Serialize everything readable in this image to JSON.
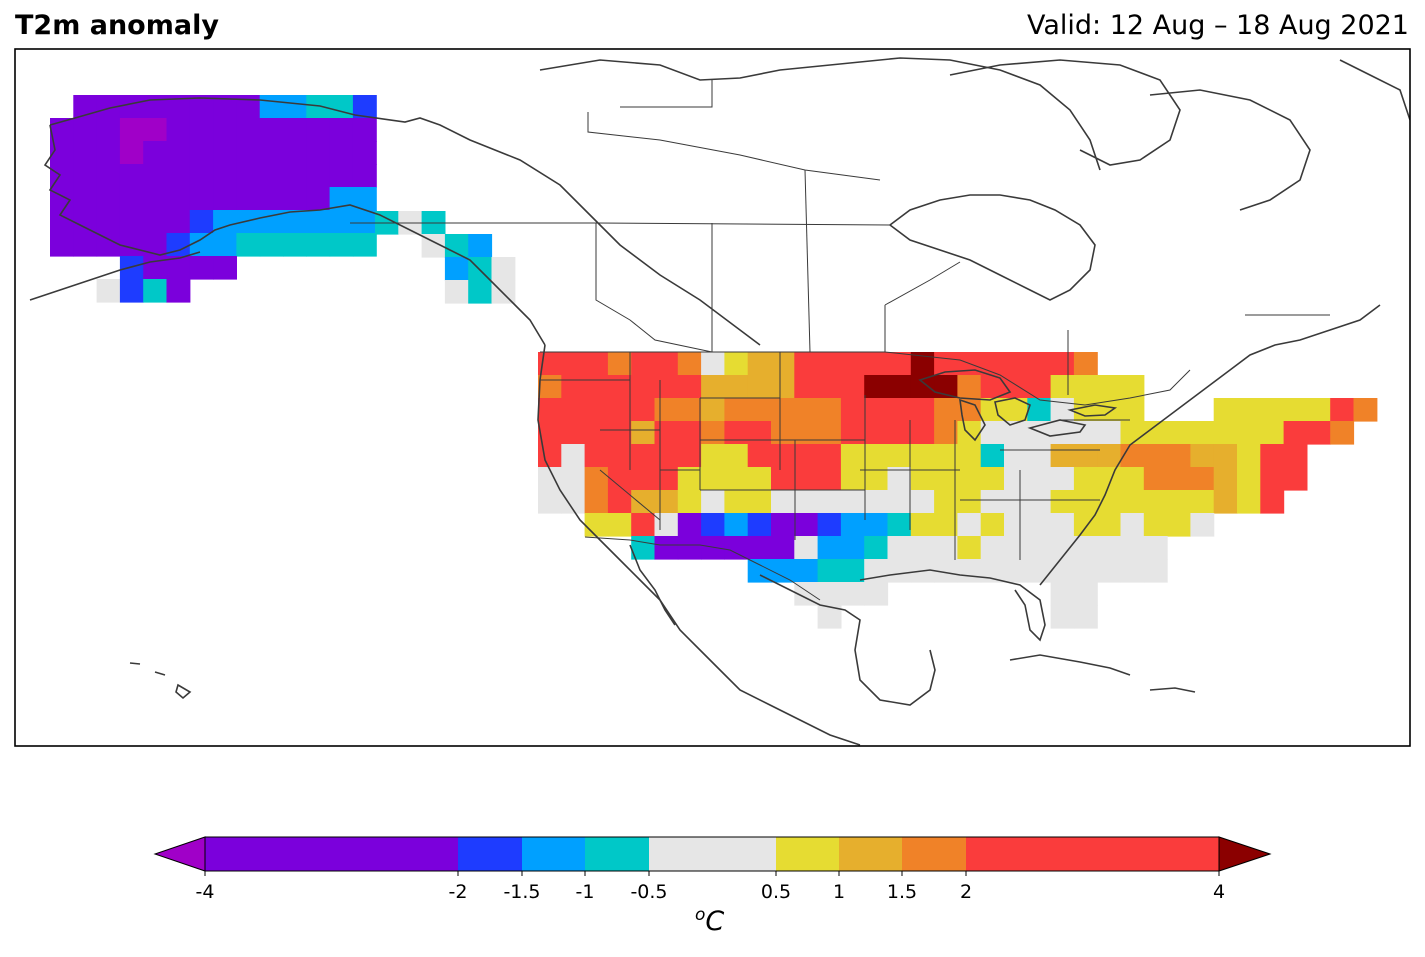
{
  "header": {
    "title": "T2m anomaly",
    "valid": "Valid: 12 Aug – 18 Aug 2021"
  },
  "colorbar": {
    "unit_prefix": "o",
    "unit_main": "C",
    "ticks": [
      "-4",
      "-2",
      "-1.5",
      "-1",
      "-0.5",
      "0.5",
      "1",
      "1.5",
      "2",
      "4"
    ],
    "bins": [
      {
        "from": -4,
        "to": -2,
        "color": "#7b00dc"
      },
      {
        "from": -2,
        "to": -1.5,
        "color": "#1e3cff"
      },
      {
        "from": -1.5,
        "to": -1,
        "color": "#00a0ff"
      },
      {
        "from": -1,
        "to": -0.5,
        "color": "#00c8c8"
      },
      {
        "from": -0.5,
        "to": 0.5,
        "color": "#e6e6e6"
      },
      {
        "from": 0.5,
        "to": 1,
        "color": "#e6dc32"
      },
      {
        "from": 1,
        "to": 1.5,
        "color": "#e6af2d"
      },
      {
        "from": 1.5,
        "to": 2,
        "color": "#f08228"
      },
      {
        "from": 2,
        "to": 4,
        "color": "#fa3c3c"
      }
    ],
    "under_color": "#a000c8",
    "over_color": "#8b0000"
  }
}
